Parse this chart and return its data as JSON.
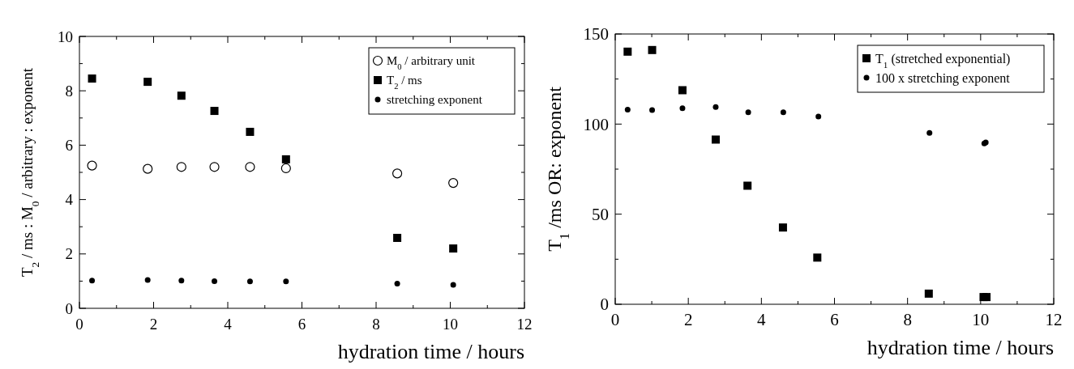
{
  "chart_data": [
    {
      "type": "scatter",
      "xlabel": "hydration time / hours",
      "ylabel": "T$_{2}$ / ms : M$_{0}$ / arbitrary : exponent",
      "x": [
        0.34,
        1.84,
        2.75,
        3.64,
        4.6,
        5.57,
        8.57,
        10.08
      ],
      "xlim": [
        0,
        12
      ],
      "xticks": [
        0,
        2,
        4,
        6,
        8,
        10,
        12
      ],
      "ylim": [
        0,
        10
      ],
      "yticks": [
        0,
        2,
        4,
        6,
        8,
        10
      ],
      "legend": "top right",
      "grid": false,
      "marker": "circle",
      "series": [
        {
          "name": "M$_{0}$ / arbitrary unit",
          "color": "#000000",
          "marker": "circle",
          "values": [
            5.25,
            5.13,
            5.2,
            5.2,
            5.2,
            5.15,
            4.96,
            4.61
          ]
        },
        {
          "name": "T$_{2}$ / ms",
          "color": "#000000",
          "marker": "square",
          "values": [
            8.45,
            8.33,
            7.82,
            7.26,
            6.49,
            5.48,
            2.59,
            2.2
          ]
        },
        {
          "name": "stretching exponent",
          "color": "#000000",
          "values": [
            1.02,
            1.04,
            1.02,
            1.0,
            0.99,
            0.99,
            0.91,
            0.86
          ]
        }
      ]
    },
    {
      "type": "scatter",
      "xlabel": "hydration time / hours",
      "ylabel": "T$_{1}$ /ms OR: exponent",
      "xlim": [
        0,
        12
      ],
      "xticks": [
        0,
        2,
        4,
        6,
        8,
        10,
        12
      ],
      "ylim": [
        0,
        150
      ],
      "yticks": [
        0,
        50,
        100,
        150
      ],
      "legend": "top right",
      "grid": false,
      "marker": "circle",
      "series": [
        {
          "name": "T$_{1}$ (stretched exponential)",
          "color": "#000000",
          "marker": "square",
          "x": [
            0.34,
            1.01,
            1.84,
            2.75,
            3.62,
            4.59,
            5.53,
            8.58,
            10.08,
            10.16
          ],
          "values": [
            140.2,
            141.1,
            118.8,
            91.4,
            65.8,
            42.6,
            25.9,
            5.9,
            4.0,
            4.0
          ]
        },
        {
          "name": "100 x stretching exponent",
          "color": "#000000",
          "x": [
            0.34,
            1.01,
            1.84,
            2.75,
            3.64,
            4.6,
            5.56,
            8.6,
            10.1,
            10.14
          ],
          "values": [
            108.0,
            107.8,
            108.8,
            109.5,
            106.5,
            106.5,
            104.2,
            95.1,
            89.3,
            89.8
          ]
        }
      ]
    }
  ]
}
